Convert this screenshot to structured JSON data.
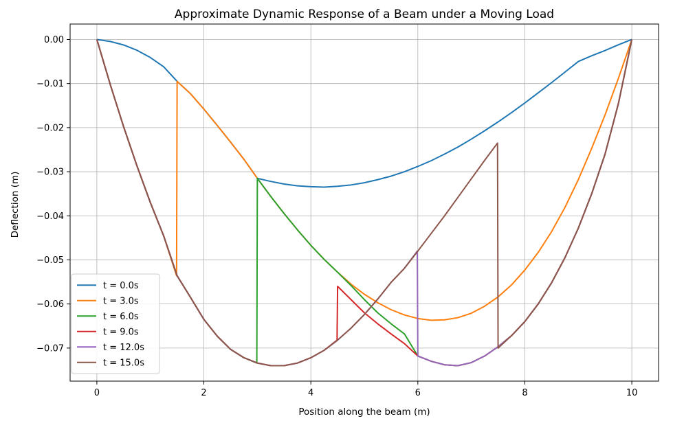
{
  "chart_data": {
    "type": "line",
    "title": "Approximate Dynamic Response of a Beam under a Moving Load",
    "xlabel": "Position along the beam (m)",
    "ylabel": "Deflection (m)",
    "xlim": [
      -0.5,
      10.5
    ],
    "ylim": [
      -0.0775,
      0.0035
    ],
    "xticks": [
      0,
      2,
      4,
      6,
      8,
      10
    ],
    "xtick_labels": [
      "0",
      "2",
      "4",
      "6",
      "8",
      "10"
    ],
    "yticks": [
      0.0,
      -0.01,
      -0.02,
      -0.03,
      -0.04,
      -0.05,
      -0.06,
      -0.07
    ],
    "ytick_labels": [
      "0.00",
      "−0.01",
      "−0.02",
      "−0.03",
      "−0.04",
      "−0.05",
      "−0.06",
      "−0.07"
    ],
    "grid": true,
    "legend_position": "bottom-left",
    "series": [
      {
        "name": "t = 0.0s",
        "color": "#1f77b4",
        "x": [
          0,
          0.25,
          0.5,
          0.75,
          1.0,
          1.25,
          1.5,
          1.75,
          2.0,
          2.25,
          2.5,
          2.75,
          3.0,
          3.25,
          3.5,
          3.75,
          4.0,
          4.25,
          4.5,
          4.75,
          5.0,
          5.25,
          5.5,
          5.75,
          6.0,
          6.25,
          6.5,
          6.75,
          7.0,
          7.25,
          7.5,
          7.75,
          8.0,
          8.25,
          8.5,
          8.75,
          9.0,
          9.25,
          9.5,
          9.75,
          10.0
        ],
        "y": [
          0.0,
          -0.00045,
          -0.00125,
          -0.00245,
          -0.0041,
          -0.0062,
          -0.0095,
          -0.0123,
          -0.0158,
          -0.0195,
          -0.0233,
          -0.0272,
          -0.0315,
          -0.0322,
          -0.0328,
          -0.0332,
          -0.0334,
          -0.0335,
          -0.0333,
          -0.033,
          -0.0325,
          -0.0318,
          -0.031,
          -0.03,
          -0.0288,
          -0.0275,
          -0.026,
          -0.0244,
          -0.0226,
          -0.0207,
          -0.0187,
          -0.0166,
          -0.0144,
          -0.0121,
          -0.0098,
          -0.0074,
          -0.005,
          -0.0037,
          -0.0025,
          -0.0012,
          0.0
        ]
      },
      {
        "name": "t = 3.0s",
        "color": "#ff7f0e",
        "x": [
          0,
          0.25,
          0.5,
          0.75,
          1.0,
          1.25,
          1.49,
          1.5,
          1.75,
          2.0,
          2.25,
          2.5,
          2.75,
          3.0,
          3.25,
          3.5,
          3.75,
          4.0,
          4.25,
          4.5,
          4.75,
          5.0,
          5.25,
          5.5,
          5.75,
          6.0,
          6.25,
          6.5,
          6.75,
          7.0,
          7.25,
          7.5,
          7.75,
          8.0,
          8.25,
          8.5,
          8.75,
          9.0,
          9.25,
          9.5,
          9.75,
          10.0
        ],
        "y": [
          0.0,
          -0.0102,
          -0.0198,
          -0.0287,
          -0.037,
          -0.0446,
          -0.0536,
          -0.0095,
          -0.0123,
          -0.0158,
          -0.0195,
          -0.0233,
          -0.0272,
          -0.0315,
          -0.0356,
          -0.0395,
          -0.0432,
          -0.0467,
          -0.0499,
          -0.0528,
          -0.0555,
          -0.0578,
          -0.0597,
          -0.0613,
          -0.0625,
          -0.0633,
          -0.0637,
          -0.0636,
          -0.0631,
          -0.0621,
          -0.0605,
          -0.0584,
          -0.0557,
          -0.0523,
          -0.0483,
          -0.0436,
          -0.0381,
          -0.0318,
          -0.0247,
          -0.0171,
          -0.0088,
          0.0
        ]
      },
      {
        "name": "t = 6.0s",
        "color": "#2ca02c",
        "x": [
          0,
          0.25,
          0.5,
          0.75,
          1.0,
          1.25,
          1.5,
          1.75,
          2.0,
          2.25,
          2.5,
          2.75,
          2.99,
          3.0,
          3.25,
          3.5,
          3.75,
          4.0,
          4.25,
          4.5,
          4.75,
          5.0,
          5.25,
          5.5,
          5.75,
          6.0,
          6.25,
          6.5,
          6.75,
          7.0,
          7.25,
          7.5,
          7.75,
          8.0,
          8.25,
          8.5,
          8.75,
          9.0,
          9.25,
          9.5,
          9.75,
          10.0
        ],
        "y": [
          0.0,
          -0.0102,
          -0.0198,
          -0.0287,
          -0.037,
          -0.0446,
          -0.0536,
          -0.0585,
          -0.0635,
          -0.0673,
          -0.0703,
          -0.0722,
          -0.0734,
          -0.0315,
          -0.0356,
          -0.0395,
          -0.0432,
          -0.0467,
          -0.0499,
          -0.0528,
          -0.0558,
          -0.059,
          -0.062,
          -0.0645,
          -0.0668,
          -0.0718,
          -0.073,
          -0.0738,
          -0.074,
          -0.0733,
          -0.0718,
          -0.0697,
          -0.0672,
          -0.064,
          -0.06,
          -0.0552,
          -0.0495,
          -0.0428,
          -0.035,
          -0.026,
          -0.0145,
          0.0
        ]
      },
      {
        "name": "t = 9.0s",
        "color": "#d62728",
        "x": [
          0,
          0.25,
          0.5,
          0.75,
          1.0,
          1.25,
          1.5,
          1.75,
          2.0,
          2.25,
          2.5,
          2.75,
          3.0,
          3.25,
          3.5,
          3.75,
          4.0,
          4.25,
          4.49,
          4.5,
          4.75,
          5.0,
          5.25,
          5.5,
          5.75,
          6.0,
          6.25,
          6.5,
          6.75,
          7.0,
          7.25,
          7.5,
          7.75,
          8.0,
          8.25,
          8.5,
          8.75,
          9.0,
          9.25,
          9.5,
          9.75,
          10.0
        ],
        "y": [
          0.0,
          -0.0102,
          -0.0198,
          -0.0287,
          -0.037,
          -0.0446,
          -0.0536,
          -0.0585,
          -0.0635,
          -0.0673,
          -0.0703,
          -0.0722,
          -0.0734,
          -0.074,
          -0.074,
          -0.0734,
          -0.0722,
          -0.0705,
          -0.0682,
          -0.056,
          -0.059,
          -0.062,
          -0.0645,
          -0.0668,
          -0.069,
          -0.0718,
          -0.073,
          -0.0738,
          -0.074,
          -0.0733,
          -0.0718,
          -0.0697,
          -0.0672,
          -0.064,
          -0.06,
          -0.0552,
          -0.0495,
          -0.0428,
          -0.035,
          -0.026,
          -0.0145,
          0.0
        ]
      },
      {
        "name": "t = 12.0s",
        "color": "#9467bd",
        "x": [
          0,
          0.25,
          0.5,
          0.75,
          1.0,
          1.25,
          1.5,
          1.75,
          2.0,
          2.25,
          2.5,
          2.75,
          3.0,
          3.25,
          3.5,
          3.75,
          4.0,
          4.25,
          4.5,
          4.75,
          5.0,
          5.25,
          5.5,
          5.75,
          5.99,
          6.0,
          6.25,
          6.5,
          6.75,
          7.0,
          7.25,
          7.5,
          7.75,
          8.0,
          8.25,
          8.5,
          8.75,
          9.0,
          9.25,
          9.5,
          9.75,
          10.0
        ],
        "y": [
          0.0,
          -0.0102,
          -0.0198,
          -0.0287,
          -0.037,
          -0.0446,
          -0.0536,
          -0.0585,
          -0.0635,
          -0.0673,
          -0.0703,
          -0.0722,
          -0.0734,
          -0.074,
          -0.074,
          -0.0734,
          -0.0722,
          -0.0705,
          -0.0682,
          -0.0655,
          -0.0624,
          -0.0589,
          -0.0551,
          -0.0519,
          -0.048,
          -0.0718,
          -0.073,
          -0.0738,
          -0.074,
          -0.0733,
          -0.0718,
          -0.0697,
          -0.0672,
          -0.064,
          -0.06,
          -0.0552,
          -0.0495,
          -0.0428,
          -0.035,
          -0.026,
          -0.0145,
          0.0
        ]
      },
      {
        "name": "t = 15.0s",
        "color": "#8c564b",
        "x": [
          0,
          0.25,
          0.5,
          0.75,
          1.0,
          1.25,
          1.5,
          1.75,
          2.0,
          2.25,
          2.5,
          2.75,
          3.0,
          3.25,
          3.5,
          3.75,
          4.0,
          4.25,
          4.5,
          4.75,
          5.0,
          5.25,
          5.5,
          5.75,
          6.0,
          6.25,
          6.5,
          6.75,
          7.0,
          7.25,
          7.49,
          7.5,
          7.75,
          8.0,
          8.25,
          8.5,
          8.75,
          9.0,
          9.25,
          9.5,
          9.75,
          10.0
        ],
        "y": [
          0.0,
          -0.0102,
          -0.0198,
          -0.0287,
          -0.037,
          -0.0446,
          -0.0536,
          -0.0585,
          -0.0635,
          -0.0673,
          -0.0703,
          -0.0722,
          -0.0734,
          -0.074,
          -0.074,
          -0.0734,
          -0.0722,
          -0.0705,
          -0.0682,
          -0.0655,
          -0.0624,
          -0.0589,
          -0.0551,
          -0.0519,
          -0.048,
          -0.044,
          -0.04,
          -0.0358,
          -0.0316,
          -0.0274,
          -0.0235,
          -0.07,
          -0.0672,
          -0.064,
          -0.06,
          -0.0552,
          -0.0495,
          -0.0428,
          -0.035,
          -0.026,
          -0.0145,
          0.0
        ]
      }
    ]
  }
}
